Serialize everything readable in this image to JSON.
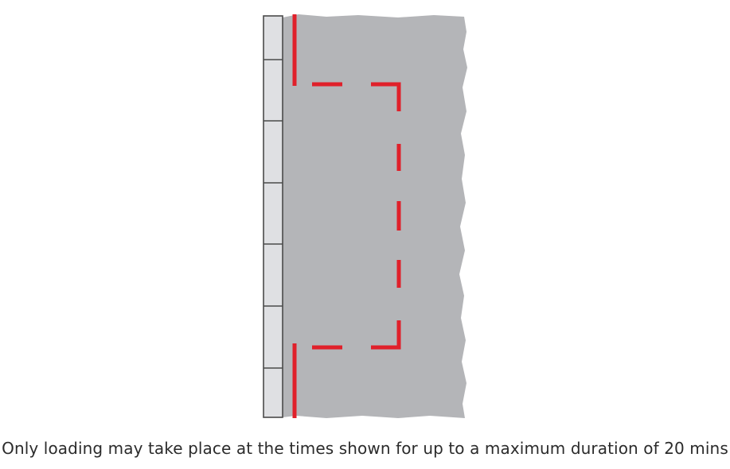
{
  "caption": "Only loading may take place at the times shown for up to a maximum duration of 20 mins",
  "colors": {
    "road": "#b4b5b8",
    "kerb_fill": "#dfe0e3",
    "kerb_stroke": "#4a4a4a",
    "marking": "#e0202a",
    "text": "#2b2b2b"
  }
}
